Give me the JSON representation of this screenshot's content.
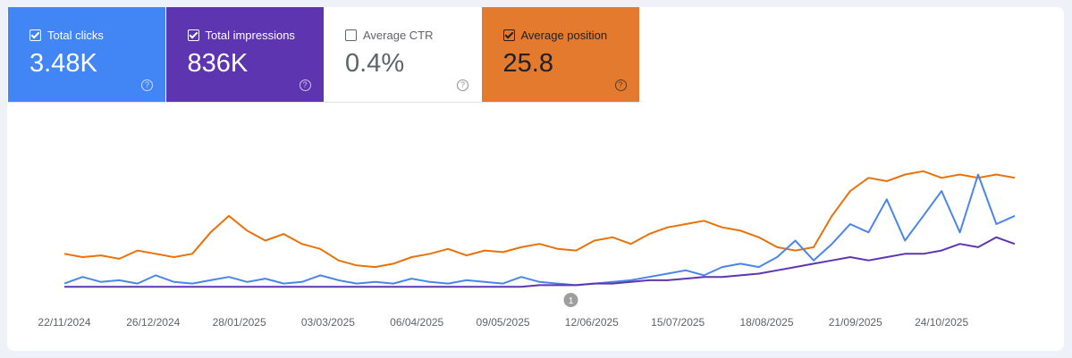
{
  "metrics": [
    {
      "label": "Total clicks",
      "value": "3.48K",
      "selected": true,
      "color": "#4285f4"
    },
    {
      "label": "Total impressions",
      "value": "836K",
      "selected": true,
      "color": "#5e35b1"
    },
    {
      "label": "Average CTR",
      "value": "0.4%",
      "selected": false,
      "color": "#ffffff"
    },
    {
      "label": "Average position",
      "value": "25.8",
      "selected": true,
      "color": "#e37a2e"
    }
  ],
  "chart_data": {
    "type": "line",
    "x": [
      "22/11/2024",
      "29/11/2024",
      "06/12/2024",
      "13/12/2024",
      "20/12/2024",
      "27/12/2024",
      "03/01/2025",
      "10/01/2025",
      "17/01/2025",
      "24/01/2025",
      "31/01/2025",
      "07/02/2025",
      "14/02/2025",
      "21/02/2025",
      "28/02/2025",
      "07/03/2025",
      "14/03/2025",
      "21/03/2025",
      "28/03/2025",
      "04/04/2025",
      "11/04/2025",
      "18/04/2025",
      "25/04/2025",
      "02/05/2025",
      "09/05/2025",
      "16/05/2025",
      "23/05/2025",
      "30/05/2025",
      "06/06/2025",
      "13/06/2025",
      "20/06/2025",
      "27/06/2025",
      "04/07/2025",
      "11/07/2025",
      "18/07/2025",
      "25/07/2025",
      "01/08/2025",
      "08/08/2025",
      "15/08/2025",
      "22/08/2025",
      "29/08/2025",
      "05/09/2025",
      "12/09/2025",
      "19/09/2025",
      "26/09/2025",
      "03/10/2025",
      "10/10/2025",
      "17/10/2025",
      "24/10/2025",
      "31/10/2025",
      "07/11/2025",
      "14/11/2025",
      "21/11/2025"
    ],
    "series": [
      {
        "color": "#e8710a",
        "values": [
          22,
          20,
          21,
          19,
          24,
          22,
          20,
          22,
          35,
          45,
          36,
          30,
          34,
          28,
          25,
          18,
          15,
          14,
          16,
          20,
          22,
          25,
          21,
          24,
          23,
          26,
          28,
          25,
          24,
          30,
          32,
          28,
          34,
          38,
          40,
          42,
          38,
          36,
          32,
          26,
          24,
          26,
          45,
          60,
          68,
          66,
          70,
          72,
          68,
          70,
          68,
          70,
          68
        ]
      },
      {
        "color": "#4a86e8",
        "values": [
          4,
          8,
          5,
          6,
          4,
          9,
          5,
          4,
          6,
          8,
          5,
          7,
          4,
          5,
          9,
          6,
          4,
          5,
          4,
          7,
          5,
          4,
          6,
          5,
          4,
          8,
          5,
          4,
          3,
          4,
          5,
          6,
          8,
          10,
          12,
          9,
          14,
          16,
          14,
          20,
          30,
          18,
          28,
          40,
          35,
          55,
          30,
          45,
          60,
          35,
          70,
          40,
          45
        ]
      },
      {
        "color": "#5e35b1",
        "values": [
          2,
          2,
          2,
          2,
          2,
          2,
          2,
          2,
          2,
          2,
          2,
          2,
          2,
          2,
          2,
          2,
          2,
          2,
          2,
          2,
          2,
          2,
          2,
          2,
          2,
          2,
          3,
          3,
          3,
          4,
          4,
          5,
          6,
          6,
          7,
          8,
          8,
          9,
          10,
          12,
          14,
          16,
          18,
          20,
          18,
          20,
          22,
          22,
          24,
          28,
          26,
          32,
          28
        ]
      }
    ],
    "ylim": [
      0,
      100
    ],
    "xticks": [
      "22/11/2024",
      "26/12/2024",
      "28/01/2025",
      "03/03/2025",
      "06/04/2025",
      "09/05/2025",
      "12/06/2025",
      "15/07/2025",
      "18/08/2025",
      "21/09/2025",
      "24/10/2025"
    ],
    "annotations": [
      {
        "x": "04/06/2025",
        "label": "1"
      }
    ]
  }
}
